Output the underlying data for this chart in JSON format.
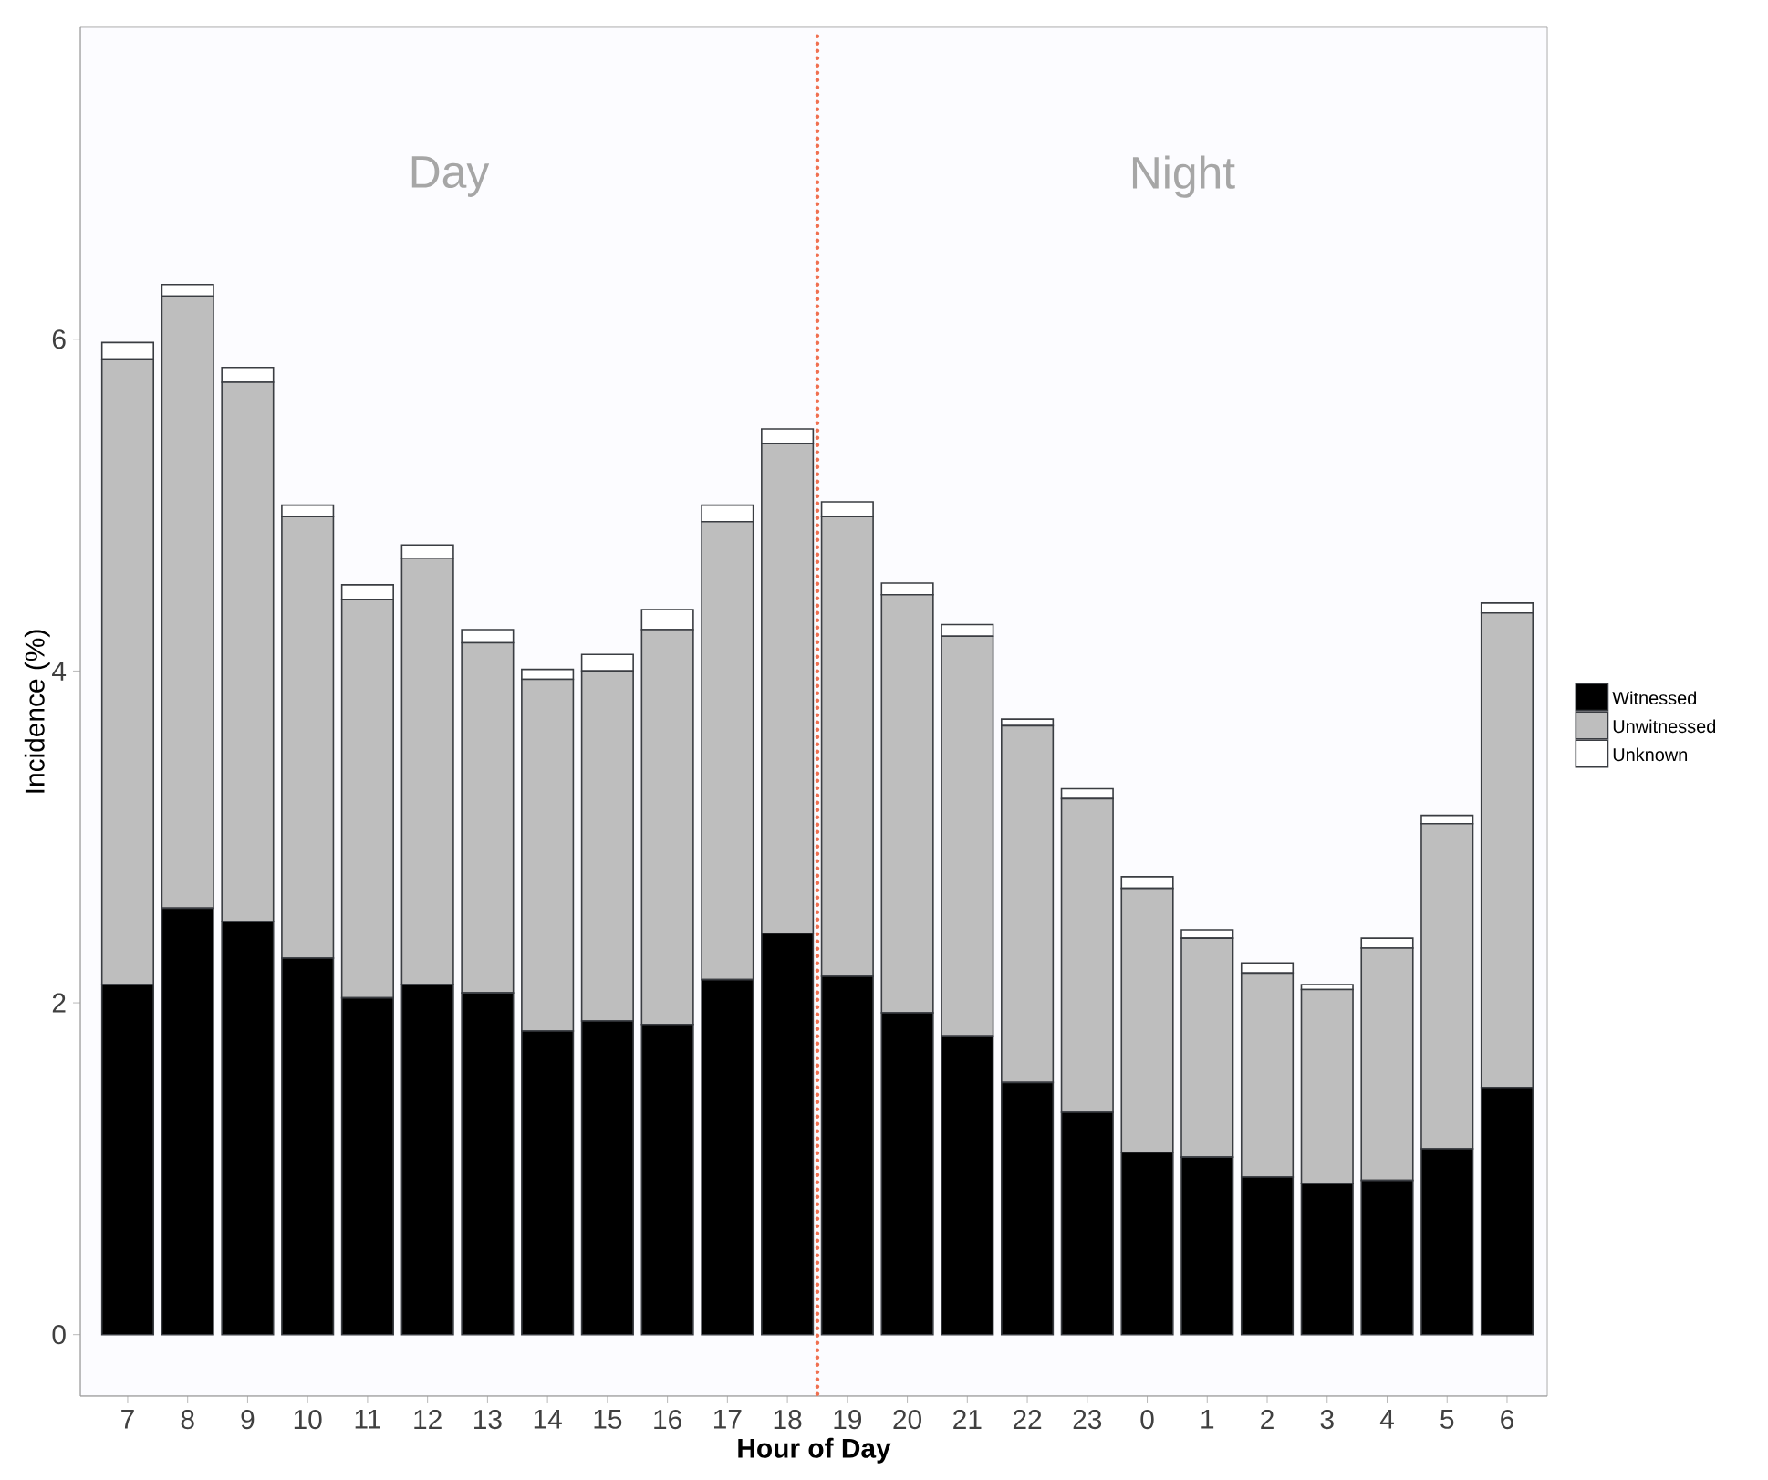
{
  "chart_data": {
    "type": "bar",
    "stacked": true,
    "xlabel": "Hour of Day",
    "ylabel": "Incidence (%)",
    "categories": [
      "7",
      "8",
      "9",
      "10",
      "11",
      "12",
      "13",
      "14",
      "15",
      "16",
      "17",
      "18",
      "19",
      "20",
      "21",
      "22",
      "23",
      "0",
      "1",
      "2",
      "3",
      "4",
      "5",
      "6"
    ],
    "series": [
      {
        "name": "Witnessed",
        "color": "#000000",
        "values": [
          2.11,
          2.57,
          2.49,
          2.27,
          2.03,
          2.11,
          2.06,
          1.83,
          1.89,
          1.87,
          2.14,
          2.42,
          2.16,
          1.94,
          1.8,
          1.52,
          1.34,
          1.1,
          1.07,
          0.95,
          0.91,
          0.93,
          1.12,
          1.49
        ]
      },
      {
        "name": "Unwitnessed",
        "color": "#bebebe",
        "values": [
          3.77,
          3.69,
          3.25,
          2.66,
          2.4,
          2.57,
          2.11,
          2.12,
          2.11,
          2.38,
          2.76,
          2.95,
          2.77,
          2.52,
          2.41,
          2.15,
          1.89,
          1.59,
          1.32,
          1.23,
          1.17,
          1.4,
          1.96,
          2.86
        ]
      },
      {
        "name": "Unknown",
        "color": "#ffffff",
        "values": [
          0.1,
          0.07,
          0.09,
          0.07,
          0.09,
          0.08,
          0.08,
          0.06,
          0.1,
          0.12,
          0.1,
          0.09,
          0.09,
          0.07,
          0.07,
          0.04,
          0.06,
          0.07,
          0.05,
          0.06,
          0.03,
          0.06,
          0.05,
          0.06
        ]
      }
    ],
    "ylim": [
      -0.37,
      7.88
    ],
    "yticks": [
      0,
      2,
      4,
      6
    ],
    "grid": false,
    "legend": "right",
    "annotations": [
      "Day",
      "Night"
    ]
  }
}
